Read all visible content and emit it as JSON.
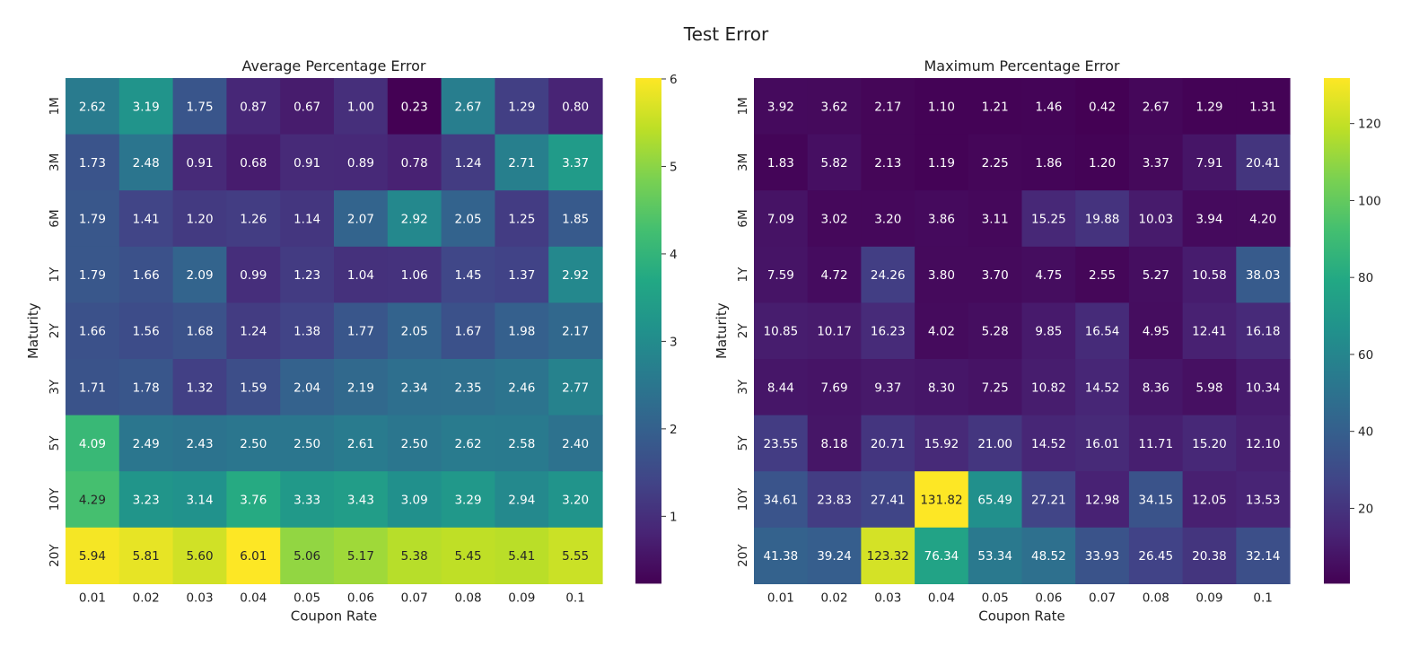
{
  "title": "Test Error",
  "colormap": "viridis",
  "chart_data": [
    {
      "type": "heatmap",
      "title": "Average Percentage Error",
      "xlabel": "Coupon Rate",
      "ylabel": "Maturity",
      "x": [
        "0.01",
        "0.02",
        "0.03",
        "0.04",
        "0.05",
        "0.06",
        "0.07",
        "0.08",
        "0.09",
        "0.1"
      ],
      "y": [
        "1M",
        "3M",
        "6M",
        "1Y",
        "2Y",
        "3Y",
        "5Y",
        "10Y",
        "20Y"
      ],
      "values": [
        [
          2.62,
          3.19,
          1.75,
          0.87,
          0.67,
          1.0,
          0.23,
          2.67,
          1.29,
          0.8
        ],
        [
          1.73,
          2.48,
          0.91,
          0.68,
          0.91,
          0.89,
          0.78,
          1.24,
          2.71,
          3.37
        ],
        [
          1.79,
          1.41,
          1.2,
          1.26,
          1.14,
          2.07,
          2.92,
          2.05,
          1.25,
          1.85
        ],
        [
          1.79,
          1.66,
          2.09,
          0.99,
          1.23,
          1.04,
          1.06,
          1.45,
          1.37,
          2.92
        ],
        [
          1.66,
          1.56,
          1.68,
          1.24,
          1.38,
          1.77,
          2.05,
          1.67,
          1.98,
          2.17
        ],
        [
          1.71,
          1.78,
          1.32,
          1.59,
          2.04,
          2.19,
          2.34,
          2.35,
          2.46,
          2.77
        ],
        [
          4.09,
          2.49,
          2.43,
          2.5,
          2.5,
          2.61,
          2.5,
          2.62,
          2.58,
          2.4
        ],
        [
          4.29,
          3.23,
          3.14,
          3.76,
          3.33,
          3.43,
          3.09,
          3.29,
          2.94,
          3.2
        ],
        [
          5.94,
          5.81,
          5.6,
          6.01,
          5.06,
          5.17,
          5.38,
          5.45,
          5.41,
          5.55
        ]
      ],
      "colorbar": {
        "min": 0.23,
        "max": 6.01,
        "ticks": [
          1,
          2,
          3,
          4,
          5,
          6
        ]
      }
    },
    {
      "type": "heatmap",
      "title": "Maximum Percentage Error",
      "xlabel": "Coupon Rate",
      "ylabel": "Maturity",
      "x": [
        "0.01",
        "0.02",
        "0.03",
        "0.04",
        "0.05",
        "0.06",
        "0.07",
        "0.08",
        "0.09",
        "0.1"
      ],
      "y": [
        "1M",
        "3M",
        "6M",
        "1Y",
        "2Y",
        "3Y",
        "5Y",
        "10Y",
        "20Y"
      ],
      "values": [
        [
          3.92,
          3.62,
          2.17,
          1.1,
          1.21,
          1.46,
          0.42,
          2.67,
          1.29,
          1.31
        ],
        [
          1.83,
          5.82,
          2.13,
          1.19,
          2.25,
          1.86,
          1.2,
          3.37,
          7.91,
          20.41
        ],
        [
          7.09,
          3.02,
          3.2,
          3.86,
          3.11,
          15.25,
          19.88,
          10.03,
          3.94,
          4.2
        ],
        [
          7.59,
          4.72,
          24.26,
          3.8,
          3.7,
          4.75,
          2.55,
          5.27,
          10.58,
          38.03
        ],
        [
          10.85,
          10.17,
          16.23,
          4.02,
          5.28,
          9.85,
          16.54,
          4.95,
          12.41,
          16.18
        ],
        [
          8.44,
          7.69,
          9.37,
          8.3,
          7.25,
          10.82,
          14.52,
          8.36,
          5.98,
          10.34
        ],
        [
          23.55,
          8.18,
          20.71,
          15.92,
          21.0,
          14.52,
          16.01,
          11.71,
          15.2,
          12.1
        ],
        [
          34.61,
          23.83,
          27.41,
          131.82,
          65.49,
          27.21,
          12.98,
          34.15,
          12.05,
          13.53
        ],
        [
          41.38,
          39.24,
          123.32,
          76.34,
          53.34,
          48.52,
          33.93,
          26.45,
          20.38,
          32.14
        ]
      ],
      "colorbar": {
        "min": 0.42,
        "max": 131.82,
        "ticks": [
          20,
          40,
          60,
          80,
          100,
          120
        ]
      }
    }
  ]
}
